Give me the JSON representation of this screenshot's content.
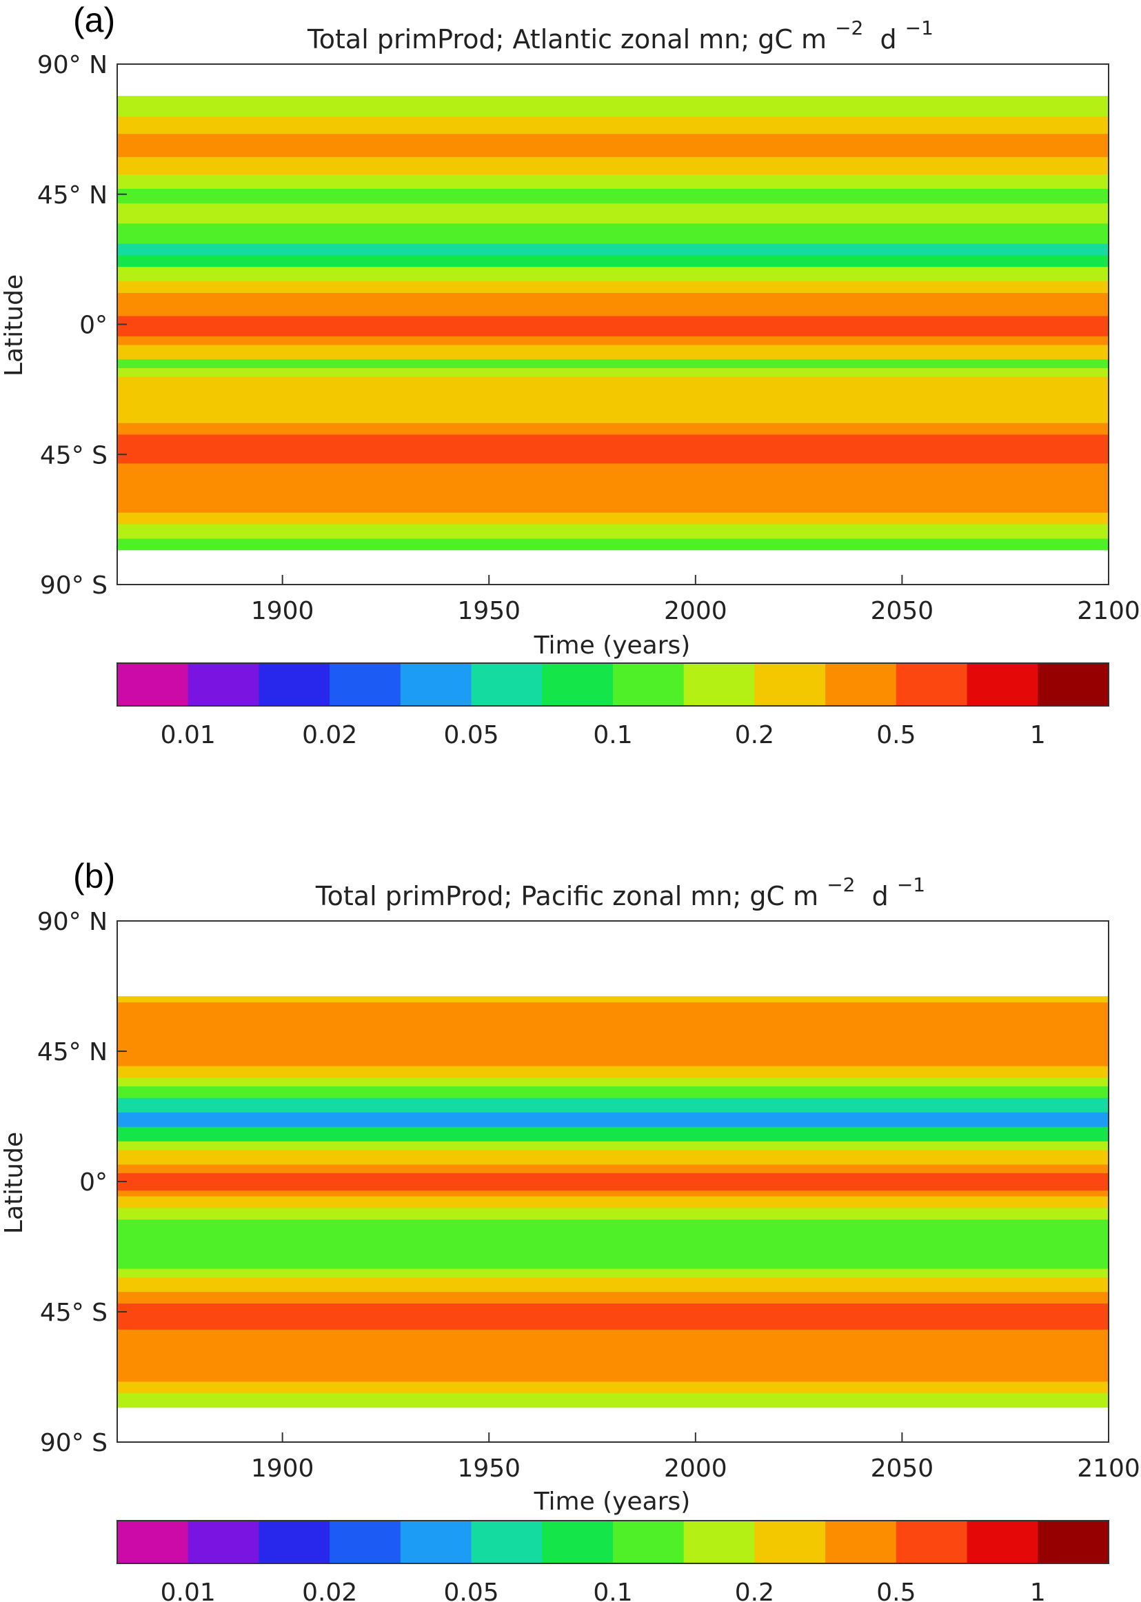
{
  "chart_data": [
    {
      "type": "heatmap",
      "panel_label": "(a)",
      "title": "Total primProd; Atlantic zonal mn; gC m",
      "title_sup1": "−2",
      "title_mid": "d",
      "title_sup2": "−1",
      "xlabel": "Time (years)",
      "ylabel": "Latitude",
      "xlim": [
        1860,
        2100
      ],
      "ylim": [
        -90,
        90
      ],
      "xticks": [
        {
          "v": 1900,
          "label": "1900"
        },
        {
          "v": 1950,
          "label": "1950"
        },
        {
          "v": 2000,
          "label": "2000"
        },
        {
          "v": 2050,
          "label": "2050"
        },
        {
          "v": 2100,
          "label": "2100"
        }
      ],
      "yticks": [
        {
          "v": 90,
          "label": "90° N"
        },
        {
          "v": 45,
          "label": "45° N"
        },
        {
          "v": 0,
          "label": "0°"
        },
        {
          "v": -45,
          "label": "45° S"
        },
        {
          "v": -90,
          "label": "90° S"
        }
      ],
      "data_lat_range": [
        -78,
        79
      ],
      "bands": [
        {
          "lat_from": -78,
          "lat_to": -74,
          "level": 7
        },
        {
          "lat_from": -74,
          "lat_to": -69,
          "level": 8
        },
        {
          "lat_from": -69,
          "lat_to": -65,
          "level": 9
        },
        {
          "lat_from": -65,
          "lat_to": -52,
          "level": 10
        },
        {
          "lat_from": -52,
          "lat_to": -48,
          "level": 10
        },
        {
          "lat_from": -48,
          "lat_to": -38,
          "level": 11
        },
        {
          "lat_from": -38,
          "lat_to": -34,
          "level": 10
        },
        {
          "lat_from": -34,
          "lat_to": -18,
          "level": 9
        },
        {
          "lat_from": -18,
          "lat_to": -15,
          "level": 8
        },
        {
          "lat_from": -15,
          "lat_to": -12,
          "level": 7
        },
        {
          "lat_from": -12,
          "lat_to": -7,
          "level": 9
        },
        {
          "lat_from": -7,
          "lat_to": -4,
          "level": 10
        },
        {
          "lat_from": -4,
          "lat_to": 3,
          "level": 11
        },
        {
          "lat_from": 3,
          "lat_to": 11,
          "level": 10
        },
        {
          "lat_from": 11,
          "lat_to": 15,
          "level": 9
        },
        {
          "lat_from": 15,
          "lat_to": 20,
          "level": 8
        },
        {
          "lat_from": 20,
          "lat_to": 24,
          "level": 6
        },
        {
          "lat_from": 24,
          "lat_to": 28,
          "level": 5
        },
        {
          "lat_from": 28,
          "lat_to": 35,
          "level": 7
        },
        {
          "lat_from": 35,
          "lat_to": 42,
          "level": 8
        },
        {
          "lat_from": 42,
          "lat_to": 47,
          "level": 7
        },
        {
          "lat_from": 47,
          "lat_to": 52,
          "level": 8
        },
        {
          "lat_from": 52,
          "lat_to": 58,
          "level": 9
        },
        {
          "lat_from": 58,
          "lat_to": 66,
          "level": 10
        },
        {
          "lat_from": 66,
          "lat_to": 72,
          "level": 9
        },
        {
          "lat_from": 72,
          "lat_to": 79,
          "level": 8
        }
      ]
    },
    {
      "type": "heatmap",
      "panel_label": "(b)",
      "title": "Total primProd; Pacific zonal mn; gC m",
      "title_sup1": "−2",
      "title_mid": "d",
      "title_sup2": "−1",
      "xlabel": "Time (years)",
      "ylabel": "Latitude",
      "xlim": [
        1860,
        2100
      ],
      "ylim": [
        -90,
        90
      ],
      "xticks": [
        {
          "v": 1900,
          "label": "1900"
        },
        {
          "v": 1950,
          "label": "1950"
        },
        {
          "v": 2000,
          "label": "2000"
        },
        {
          "v": 2050,
          "label": "2050"
        },
        {
          "v": 2100,
          "label": "2100"
        }
      ],
      "yticks": [
        {
          "v": 90,
          "label": "90° N"
        },
        {
          "v": 45,
          "label": "45° N"
        },
        {
          "v": 0,
          "label": "0°"
        },
        {
          "v": -45,
          "label": "45° S"
        },
        {
          "v": -90,
          "label": "90° S"
        }
      ],
      "data_lat_range": [
        -78,
        64
      ],
      "bands": [
        {
          "lat_from": -78,
          "lat_to": -73,
          "level": 8
        },
        {
          "lat_from": -73,
          "lat_to": -69,
          "level": 9
        },
        {
          "lat_from": -69,
          "lat_to": -51,
          "level": 10
        },
        {
          "lat_from": -51,
          "lat_to": -42,
          "level": 11
        },
        {
          "lat_from": -42,
          "lat_to": -38,
          "level": 10
        },
        {
          "lat_from": -38,
          "lat_to": -33,
          "level": 9
        },
        {
          "lat_from": -33,
          "lat_to": -30,
          "level": 8
        },
        {
          "lat_from": -30,
          "lat_to": -13,
          "level": 7
        },
        {
          "lat_from": -13,
          "lat_to": -9,
          "level": 8
        },
        {
          "lat_from": -9,
          "lat_to": -5,
          "level": 9
        },
        {
          "lat_from": -5,
          "lat_to": -3,
          "level": 10
        },
        {
          "lat_from": -3,
          "lat_to": 3,
          "level": 11
        },
        {
          "lat_from": 3,
          "lat_to": 6,
          "level": 10
        },
        {
          "lat_from": 6,
          "lat_to": 11,
          "level": 9
        },
        {
          "lat_from": 11,
          "lat_to": 14,
          "level": 8
        },
        {
          "lat_from": 14,
          "lat_to": 19,
          "level": 6
        },
        {
          "lat_from": 19,
          "lat_to": 24,
          "level": 4
        },
        {
          "lat_from": 24,
          "lat_to": 29,
          "level": 5
        },
        {
          "lat_from": 29,
          "lat_to": 33,
          "level": 7
        },
        {
          "lat_from": 33,
          "lat_to": 36,
          "level": 8
        },
        {
          "lat_from": 36,
          "lat_to": 40,
          "level": 9
        },
        {
          "lat_from": 40,
          "lat_to": 62,
          "level": 10
        },
        {
          "lat_from": 62,
          "lat_to": 64,
          "level": 9
        }
      ]
    }
  ],
  "colorbar": {
    "colors": [
      "#cc0aa8",
      "#7a14e0",
      "#2828ec",
      "#1c5cf4",
      "#1c9cf4",
      "#14dca0",
      "#14e64a",
      "#50f028",
      "#b4f014",
      "#f4c800",
      "#fc8c00",
      "#fc4810",
      "#e40808",
      "#960000"
    ],
    "tick_labels": [
      "0.01",
      "0.02",
      "0.05",
      "0.1",
      "0.2",
      "0.5",
      "1"
    ]
  }
}
